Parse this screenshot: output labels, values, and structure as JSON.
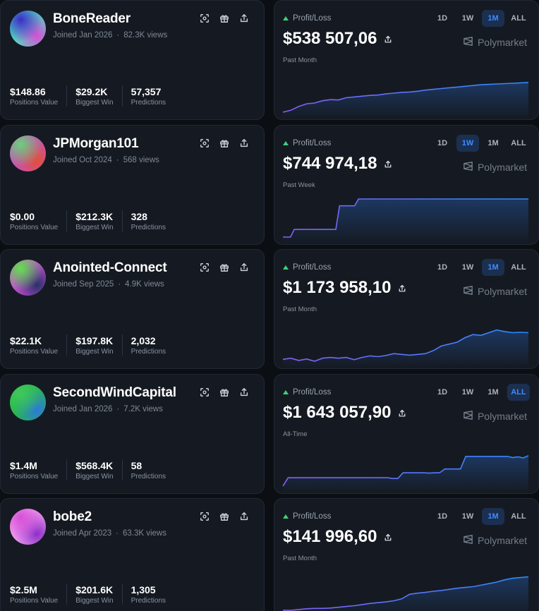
{
  "colors": {
    "positive": "#3fd17a",
    "accent": "#3f8cff",
    "line_start": "#8b5cf6",
    "line_end": "#2b8cff"
  },
  "icons": [
    "scan-icon",
    "gift-icon",
    "share-icon",
    "polymarket-logo-icon"
  ],
  "rows": [
    {
      "username": "BoneReader",
      "joined": "Joined Jan 2026",
      "views": "82.3K views",
      "avatar_colors": [
        "#3b2cc9",
        "#d84fd6",
        "#4fe0c0"
      ],
      "stats": [
        {
          "value": "$148.86",
          "label": "Positions Value"
        },
        {
          "value": "$29.2K",
          "label": "Biggest Win"
        },
        {
          "value": "57,357",
          "label": "Predictions"
        }
      ],
      "pnl": {
        "label": "Profit/Loss",
        "amount": "$538 507,06",
        "period_text": "Past Month",
        "brand": "Polymarket",
        "periods": [
          "1D",
          "1W",
          "1M",
          "ALL"
        ],
        "active_period": "1M",
        "series": [
          0,
          0.05,
          0.15,
          0.22,
          0.24,
          0.3,
          0.33,
          0.32,
          0.38,
          0.4,
          0.42,
          0.44,
          0.45,
          0.48,
          0.5,
          0.52,
          0.53,
          0.55,
          0.58,
          0.6,
          0.62,
          0.64,
          0.66,
          0.68,
          0.7,
          0.72,
          0.73,
          0.74,
          0.75,
          0.76,
          0.77,
          0.78
        ]
      }
    },
    {
      "username": "JPMorgan101",
      "joined": "Joined Oct 2024",
      "views": "568 views",
      "avatar_colors": [
        "#6ad07a",
        "#e0503a",
        "#c94fbf"
      ],
      "stats": [
        {
          "value": "$0.00",
          "label": "Positions Value"
        },
        {
          "value": "$212.3K",
          "label": "Biggest Win"
        },
        {
          "value": "328",
          "label": "Predictions"
        }
      ],
      "pnl": {
        "label": "Profit/Loss",
        "amount": "$744 974,18",
        "period_text": "Past Week",
        "brand": "Polymarket",
        "periods": [
          "1D",
          "1W",
          "1M",
          "ALL"
        ],
        "active_period": "1W",
        "series": [
          0,
          0,
          0,
          0.2,
          0.2,
          0.2,
          0.2,
          0.2,
          0.2,
          0.2,
          0.2,
          0.2,
          0.2,
          0.2,
          0.2,
          0.82,
          0.82,
          0.82,
          0.82,
          0.82,
          1,
          1,
          1,
          1,
          1,
          1,
          1,
          1,
          1,
          1,
          1,
          1,
          1,
          1,
          1,
          1,
          1,
          1,
          1,
          1,
          1,
          1,
          1,
          1,
          1,
          1,
          1,
          1,
          1,
          1,
          1,
          1,
          1,
          1,
          1,
          1,
          1,
          1,
          1,
          1,
          1,
          1,
          1,
          1,
          1,
          1
        ]
      }
    },
    {
      "username": "Anointed-Connect",
      "joined": "Joined Sep 2025",
      "views": "4.9K views",
      "avatar_colors": [
        "#5fe04a",
        "#2a2f6a",
        "#c94fd6"
      ],
      "stats": [
        {
          "value": "$22.1K",
          "label": "Positions Value"
        },
        {
          "value": "$197.8K",
          "label": "Biggest Win"
        },
        {
          "value": "2,032",
          "label": "Predictions"
        }
      ],
      "pnl": {
        "label": "Profit/Loss",
        "amount": "$1 173 958,10",
        "period_text": "Past Month",
        "brand": "Polymarket",
        "periods": [
          "1D",
          "1W",
          "1M",
          "ALL"
        ],
        "active_period": "1M",
        "series": [
          0.05,
          0.08,
          0.02,
          0.06,
          0,
          0.08,
          0.1,
          0.08,
          0.1,
          0.04,
          0.1,
          0.14,
          0.12,
          0.15,
          0.2,
          0.18,
          0.16,
          0.18,
          0.2,
          0.28,
          0.4,
          0.45,
          0.5,
          0.62,
          0.7,
          0.68,
          0.75,
          0.82,
          0.78,
          0.75,
          0.76,
          0.75
        ]
      }
    },
    {
      "username": "SecondWindCapital",
      "joined": "Joined Jan 2026",
      "views": "7.2K views",
      "avatar_colors": [
        "#3fc95a",
        "#2a7ad8",
        "#2ab84a"
      ],
      "stats": [
        {
          "value": "$1.4M",
          "label": "Positions Value"
        },
        {
          "value": "$568.4K",
          "label": "Biggest Win"
        },
        {
          "value": "58",
          "label": "Predictions"
        }
      ],
      "pnl": {
        "label": "Profit/Loss",
        "amount": "$1 643 057,90",
        "period_text": "All-Time",
        "brand": "Polymarket",
        "periods": [
          "1D",
          "1W",
          "1M",
          "ALL"
        ],
        "active_period": "ALL",
        "series": [
          0,
          0.22,
          0.22,
          0.22,
          0.22,
          0.22,
          0.22,
          0.22,
          0.22,
          0.22,
          0.22,
          0.22,
          0.22,
          0.22,
          0.22,
          0.22,
          0.22,
          0.22,
          0.22,
          0.22,
          0.22,
          0.2,
          0.2,
          0.35,
          0.35,
          0.35,
          0.35,
          0.35,
          0.34,
          0.35,
          0.35,
          0.45,
          0.45,
          0.45,
          0.45,
          0.78,
          0.78,
          0.78,
          0.78,
          0.78,
          0.78,
          0.78,
          0.78,
          0.78,
          0.75,
          0.77,
          0.74,
          0.8
        ]
      }
    },
    {
      "username": "bobe2",
      "joined": "Joined Apr 2023",
      "views": "63.3K views",
      "avatar_colors": [
        "#d84fd6",
        "#8b2fc9",
        "#f2a0f0"
      ],
      "stats": [
        {
          "value": "$2.5M",
          "label": "Positions Value"
        },
        {
          "value": "$201.6K",
          "label": "Biggest Win"
        },
        {
          "value": "1,305",
          "label": "Predictions"
        }
      ],
      "pnl": {
        "label": "Profit/Loss",
        "amount": "$141 996,60",
        "period_text": "Past Month",
        "brand": "Polymarket",
        "periods": [
          "1D",
          "1W",
          "1M",
          "ALL"
        ],
        "active_period": "1M",
        "series": [
          0,
          0,
          0.02,
          0.04,
          0.05,
          0.05,
          0.06,
          0.08,
          0.1,
          0.12,
          0.15,
          0.18,
          0.2,
          0.22,
          0.25,
          0.3,
          0.42,
          0.45,
          0.47,
          0.5,
          0.52,
          0.55,
          0.58,
          0.6,
          0.62,
          0.66,
          0.7,
          0.74,
          0.8,
          0.84,
          0.86,
          0.88
        ]
      }
    }
  ]
}
